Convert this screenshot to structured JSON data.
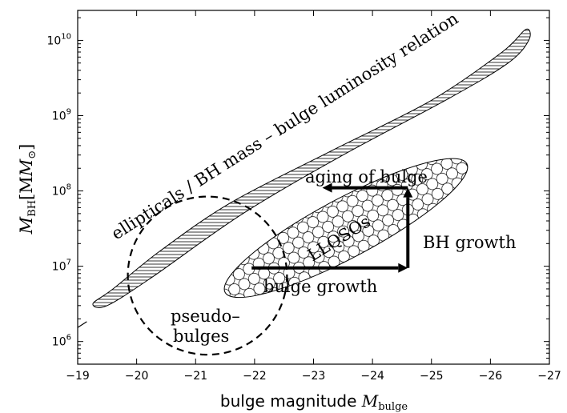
{
  "chart_data": {
    "type": "diagram-scatter",
    "x_axis": {
      "label_main": "bulge magnitude ",
      "label_math": "M",
      "label_sub": "bulge",
      "range": [
        -19,
        -27
      ],
      "ticks": [
        -19,
        -20,
        -21,
        -22,
        -23,
        -24,
        -25,
        -26,
        -27
      ],
      "tick_labels": [
        "−19",
        "−20",
        "−21",
        "−22",
        "−23",
        "−24",
        "−25",
        "−26",
        "−27"
      ]
    },
    "y_axis": {
      "label_math": "M",
      "label_sub": "BH",
      "label_unit": "[M",
      "label_unit_sub": "⊙",
      "label_close": "]",
      "scale": "log",
      "range": [
        500000,
        25000000000
      ],
      "ticks": [
        1000000,
        10000000,
        100000000,
        1000000000,
        10000000000
      ],
      "tick_base": "10",
      "tick_exponents": [
        "6",
        "7",
        "8",
        "9",
        "10"
      ]
    },
    "regions": [
      {
        "name": "ellipticals",
        "label": "ellipticals / BH mass – bulge luminosity relation",
        "fill": "horizontal-hatch",
        "outline": [
          [
            -19.26,
            3200000.0
          ],
          [
            -19.6,
            5000000.0
          ],
          [
            -20.4,
            16000000.0
          ],
          [
            -21.6,
            70000000.0
          ],
          [
            -23.3,
            340000000.0
          ],
          [
            -25.0,
            1600000000.0
          ],
          [
            -26.2,
            7000000000.0
          ],
          [
            -26.6,
            14000000000.0
          ],
          [
            -26.65,
            10000000000.0
          ],
          [
            -26.3,
            5000000000.0
          ],
          [
            -25.3,
            1700000000.0
          ],
          [
            -23.5,
            300000000.0
          ],
          [
            -21.8,
            50000000.0
          ],
          [
            -20.3,
            7500000.0
          ],
          [
            -19.5,
            3000000.0
          ]
        ]
      },
      {
        "name": "LLQSOs",
        "label": "LLQSOs",
        "fill": "circle-pattern",
        "center": [
          -23.5,
          33000000.0
        ],
        "semi_major_decades_x": 3.3,
        "note": "tilted ellipse from (-21.5, 4.5e6) to (-25.6, 2.3e8)"
      },
      {
        "name": "pseudo-bulges",
        "label_line1": "pseudo–",
        "label_line2": "bulges",
        "style": "dashed-outline",
        "center": [
          -21.2,
          7500000.0
        ],
        "radius_x_mag": 1.35,
        "radius_y_decades": 1.05
      }
    ],
    "arrows": [
      {
        "label": "bulge growth",
        "from": [
          -21.95,
          9500000.0
        ],
        "to": [
          -24.6,
          9500000.0
        ]
      },
      {
        "label": "BH growth",
        "from": [
          -24.6,
          9500000.0
        ],
        "to": [
          -24.6,
          110000000.0
        ]
      },
      {
        "label": "aging of bulge",
        "from": [
          -24.6,
          110000000.0
        ],
        "to": [
          -23.15,
          110000000.0
        ]
      }
    ],
    "trend_line_stub": {
      "from": [
        -19.0,
        1600000.0
      ],
      "to": [
        -19.1,
        1750000.0
      ]
    }
  },
  "colors": {
    "ink": "#000000",
    "background": "#ffffff"
  }
}
